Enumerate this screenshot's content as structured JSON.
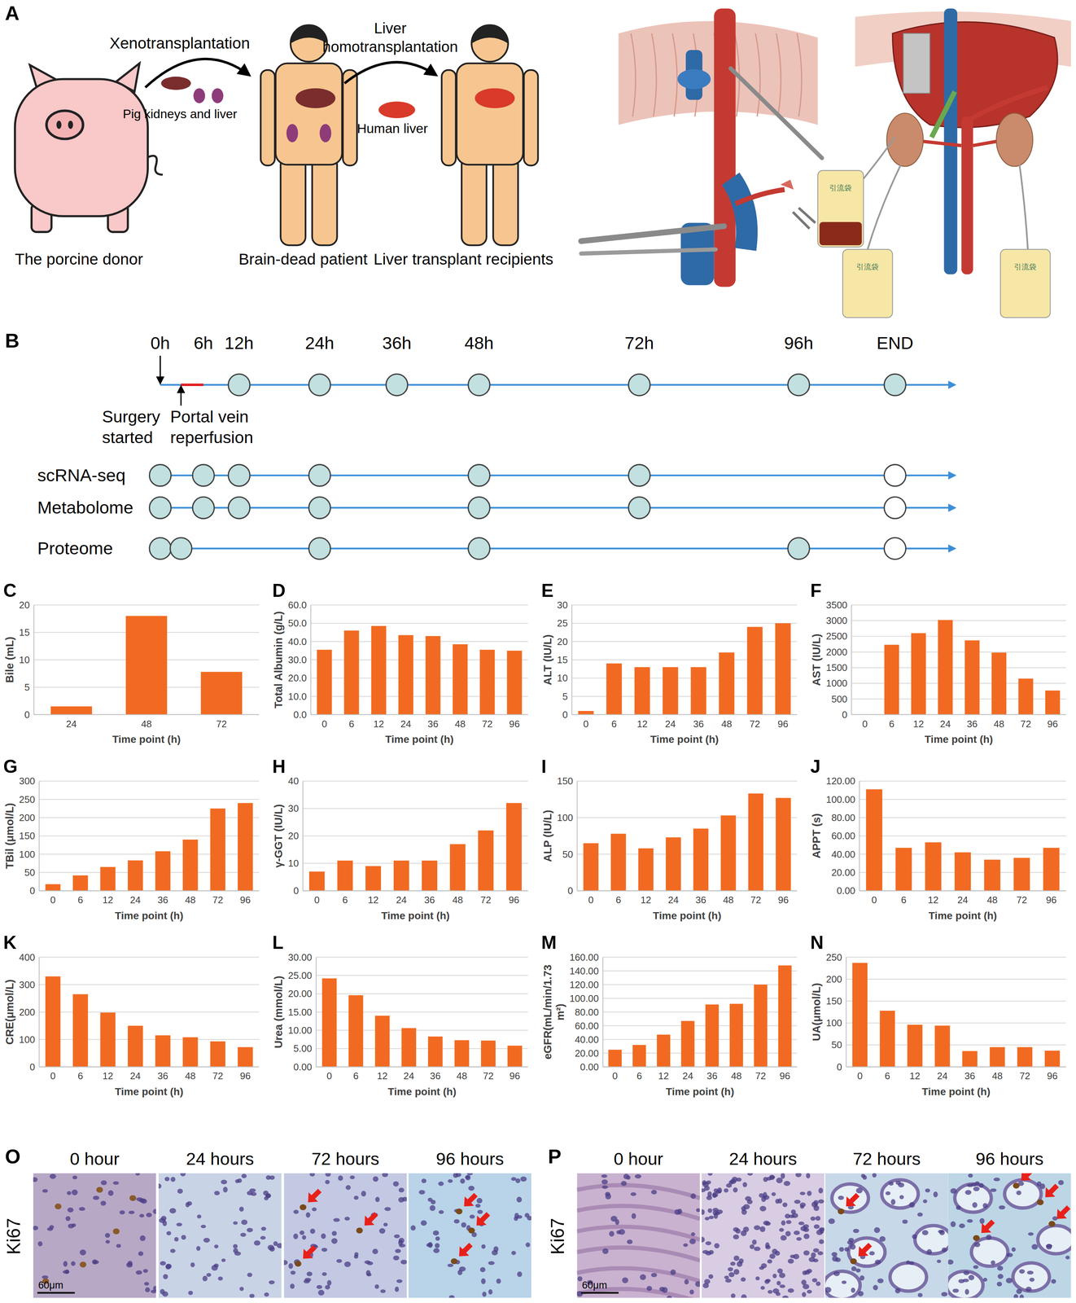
{
  "panel_a": {
    "panel": "A",
    "xenotransplantation": "Xenotransplantation",
    "pig_organs": "Pig kidneys and liver",
    "homotransplantation": "Liver homotransplantation",
    "human_liver": "Human liver",
    "donor": "The porcine donor",
    "brain_dead": "Brain-dead patient",
    "recipients": "Liver transplant recipients",
    "drainage_bags": [
      "引流袋",
      "引流袋",
      "引流袋"
    ]
  },
  "panel_b": {
    "panel": "B",
    "timepoints": [
      "0h",
      "6h",
      "12h",
      "24h",
      "36h",
      "48h",
      "72h",
      "96h",
      "END"
    ],
    "events": [
      "Surgery started",
      "Portal vein reperfusion"
    ],
    "main_points": [
      "12h",
      "24h",
      "36h",
      "48h",
      "72h",
      "96h",
      "END"
    ],
    "rows": [
      {
        "label": "scRNA-seq",
        "points": [
          "0h",
          "6h",
          "12h",
          "24h",
          "48h",
          "72h",
          "END"
        ],
        "open": [
          "END"
        ]
      },
      {
        "label": "Metabolome",
        "points": [
          "0h",
          "6h",
          "12h",
          "24h",
          "48h",
          "72h",
          "END"
        ],
        "open": [
          "END"
        ]
      },
      {
        "label": "Proteome",
        "points": [
          "0h",
          "Portal vein reperfusion",
          "24h",
          "48h",
          "96h",
          "END"
        ],
        "open": [
          "END"
        ]
      }
    ]
  },
  "chart_data": [
    {
      "panel": "C",
      "type": "bar",
      "y_label": "Bile (mL)",
      "x_label": "Time point (h)",
      "categories": [
        "24",
        "48",
        "72"
      ],
      "values": [
        1.5,
        18,
        7.8
      ],
      "color": "#f26a21",
      "ylim": [
        0,
        20
      ],
      "yticks": [
        0,
        5,
        10,
        15,
        20
      ],
      "grid": true
    },
    {
      "panel": "D",
      "type": "bar",
      "y_label": "Total Albumin (g/L)",
      "x_label": "Time point (h)",
      "categories": [
        "0",
        "6",
        "12",
        "24",
        "36",
        "48",
        "72",
        "96"
      ],
      "values": [
        35.5,
        46,
        48.5,
        43.5,
        43,
        38.5,
        35.5,
        35
      ],
      "color": "#f26a21",
      "ylim": [
        0,
        60
      ],
      "yticks": [
        {
          "value": 0,
          "label": "0.0"
        },
        {
          "value": 10,
          "label": "10.0"
        },
        {
          "value": 20,
          "label": "20.0"
        },
        {
          "value": 30,
          "label": "30.0"
        },
        {
          "value": 40,
          "label": "40.0"
        },
        {
          "value": 50,
          "label": "50.0"
        },
        {
          "value": 60,
          "label": "60.0"
        }
      ],
      "grid": true
    },
    {
      "panel": "E",
      "type": "bar",
      "y_label": "ALT (IU/L)",
      "x_label": "Time point (h)",
      "categories": [
        "0",
        "6",
        "12",
        "24",
        "36",
        "48",
        "72",
        "96"
      ],
      "values": [
        1,
        14,
        13,
        13,
        13,
        17,
        24,
        25
      ],
      "color": "#f26a21",
      "ylim": [
        0,
        30
      ],
      "yticks": [
        0,
        5,
        10,
        15,
        20,
        25,
        30
      ],
      "grid": true
    },
    {
      "panel": "F",
      "type": "bar",
      "y_label": "AST (IU/L)",
      "x_label": "Time point (h)",
      "categories": [
        "0",
        "6",
        "12",
        "24",
        "36",
        "48",
        "72",
        "96"
      ],
      "values": [
        0,
        2230,
        2600,
        3020,
        2370,
        1980,
        1150,
        770
      ],
      "color": "#f26a21",
      "ylim": [
        0,
        3500
      ],
      "yticks": [
        0,
        500,
        1000,
        1500,
        2000,
        2500,
        3000,
        3500
      ],
      "grid": true
    },
    {
      "panel": "G",
      "type": "bar",
      "y_label": "TBil (μmol/L)",
      "x_label": "Time point (h)",
      "categories": [
        "0",
        "6",
        "12",
        "24",
        "36",
        "48",
        "72",
        "96"
      ],
      "values": [
        18,
        42,
        65,
        83,
        108,
        140,
        225,
        240
      ],
      "color": "#f26a21",
      "ylim": [
        0,
        300
      ],
      "yticks": [
        0,
        50,
        100,
        150,
        200,
        250,
        300
      ],
      "grid": true
    },
    {
      "panel": "H",
      "type": "bar",
      "y_label": "γ-GGT (IU/L)",
      "x_label": "Time point (h)",
      "categories": [
        "0",
        "6",
        "12",
        "24",
        "36",
        "48",
        "72",
        "96"
      ],
      "values": [
        7,
        11,
        9,
        11,
        11,
        17,
        22,
        32
      ],
      "color": "#f26a21",
      "ylim": [
        0,
        40
      ],
      "yticks": [
        0,
        10,
        20,
        30,
        40
      ],
      "grid": true
    },
    {
      "panel": "I",
      "type": "bar",
      "y_label": "ALP (IU/L)",
      "x_label": "Time point (h)",
      "categories": [
        "0",
        "6",
        "12",
        "24",
        "36",
        "48",
        "72",
        "96"
      ],
      "values": [
        65,
        78,
        58,
        73,
        85,
        103,
        133,
        127
      ],
      "color": "#f26a21",
      "ylim": [
        0,
        150
      ],
      "yticks": [
        0,
        50,
        100,
        150
      ],
      "grid": true
    },
    {
      "panel": "J",
      "type": "bar",
      "y_label": "APPT (s)",
      "x_label": "Time point (h)",
      "categories": [
        "0",
        "6",
        "12",
        "24",
        "48",
        "72",
        "96"
      ],
      "values": [
        111,
        47,
        53,
        42,
        34,
        36,
        47
      ],
      "color": "#f26a21",
      "ylim": [
        0,
        120
      ],
      "yticks": [
        {
          "value": 0,
          "label": "0.00"
        },
        {
          "value": 20,
          "label": "20.00"
        },
        {
          "value": 40,
          "label": "40.00"
        },
        {
          "value": 60,
          "label": "60.00"
        },
        {
          "value": 80,
          "label": "80.00"
        },
        {
          "value": 100,
          "label": "100.00"
        },
        {
          "value": 120,
          "label": "120.00"
        }
      ],
      "grid": true
    },
    {
      "panel": "K",
      "type": "bar",
      "y_label": "CRE(μmol/L)",
      "x_label": "Time point (h)",
      "categories": [
        "0",
        "6",
        "12",
        "24",
        "36",
        "48",
        "72",
        "96"
      ],
      "values": [
        330,
        265,
        198,
        150,
        115,
        108,
        93,
        72
      ],
      "color": "#f26a21",
      "ylim": [
        0,
        400
      ],
      "yticks": [
        0,
        100,
        200,
        300,
        400
      ],
      "grid": true
    },
    {
      "panel": "L",
      "type": "bar",
      "y_label": "Urea (mmol/L)",
      "x_label": "Time point (h)",
      "categories": [
        "0",
        "6",
        "12",
        "24",
        "36",
        "48",
        "72",
        "96"
      ],
      "values": [
        24.2,
        19.6,
        14,
        10.6,
        8.3,
        7.3,
        7.2,
        5.8
      ],
      "color": "#f26a21",
      "ylim": [
        0,
        30
      ],
      "yticks": [
        {
          "value": 0,
          "label": "0.00"
        },
        {
          "value": 5,
          "label": "5.00"
        },
        {
          "value": 10,
          "label": "10.00"
        },
        {
          "value": 15,
          "label": "15.00"
        },
        {
          "value": 20,
          "label": "20.00"
        },
        {
          "value": 25,
          "label": "25.00"
        },
        {
          "value": 30,
          "label": "30.00"
        }
      ],
      "grid": true
    },
    {
      "panel": "M",
      "type": "bar",
      "y_label": "eGFR(mL/min/1.73 m²)",
      "x_label": "Time point (h)",
      "categories": [
        "0",
        "6",
        "12",
        "24",
        "36",
        "48",
        "72",
        "96"
      ],
      "values": [
        25,
        32,
        47,
        67,
        91,
        92,
        120,
        148
      ],
      "color": "#f26a21",
      "ylim": [
        0,
        160
      ],
      "yticks": [
        {
          "value": 0,
          "label": "0.00"
        },
        {
          "value": 20,
          "label": "20.00"
        },
        {
          "value": 40,
          "label": "40.00"
        },
        {
          "value": 60,
          "label": "60.00"
        },
        {
          "value": 80,
          "label": "80.00"
        },
        {
          "value": 100,
          "label": "100.00"
        },
        {
          "value": 120,
          "label": "120.00"
        },
        {
          "value": 140,
          "label": "140.00"
        },
        {
          "value": 160,
          "label": "160.00"
        }
      ],
      "grid": true
    },
    {
      "panel": "N",
      "type": "bar",
      "y_label": "UA(μmol/L)",
      "x_label": "Time point (h)",
      "categories": [
        "0",
        "6",
        "12",
        "24",
        "36",
        "48",
        "72",
        "96"
      ],
      "values": [
        237,
        128,
        96,
        94,
        36,
        45,
        45,
        37
      ],
      "color": "#f26a21",
      "ylim": [
        0,
        250
      ],
      "yticks": [
        0,
        50,
        100,
        150,
        200,
        250
      ],
      "grid": true
    }
  ],
  "panel_o": {
    "panel": "O",
    "stain": "Ki67",
    "times": [
      "0 hour",
      "24 hours",
      "72 hours",
      "96 hours"
    ],
    "scale_bar": "60μm"
  },
  "panel_p": {
    "panel": "P",
    "stain": "Ki67",
    "times": [
      "0 hour",
      "24 hours",
      "72 hours",
      "96 hours"
    ],
    "scale_bar": "60μm"
  }
}
